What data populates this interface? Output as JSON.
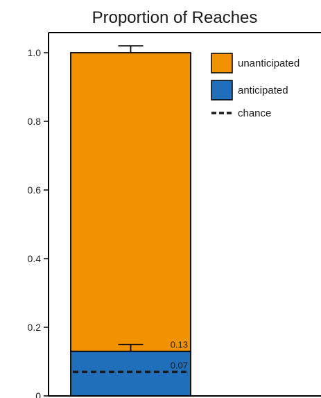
{
  "colors": {
    "unanticipated": "#F39200",
    "anticipated": "#1F6FBA",
    "chance_line": "#1a1a1a",
    "axis": "#000000"
  },
  "chart_data": {
    "type": "bar",
    "stacked": true,
    "title": "Proportion of Reaches",
    "xlabel": "",
    "ylabel": "",
    "ylim": [
      0,
      1.0
    ],
    "y_ticks": [
      "0",
      "0.2",
      "0.4",
      "0.6",
      "0.8",
      "1.0"
    ],
    "y_tick_values": [
      0,
      0.2,
      0.4,
      0.6,
      0.8,
      1.0
    ],
    "grid": false,
    "legend_position": "top-right",
    "categories": [
      ""
    ],
    "series": [
      {
        "name": "anticipated",
        "values": [
          0.13
        ],
        "error": [
          0.02
        ],
        "color": "#1F6FBA"
      },
      {
        "name": "unanticipated",
        "values": [
          0.87
        ],
        "error": [
          0.02
        ],
        "color": "#F39200"
      }
    ],
    "reference_lines": [
      {
        "name": "chance",
        "value": 0.07,
        "style": "dashed"
      }
    ],
    "annotations": [
      "0.13",
      "0.07"
    ]
  }
}
